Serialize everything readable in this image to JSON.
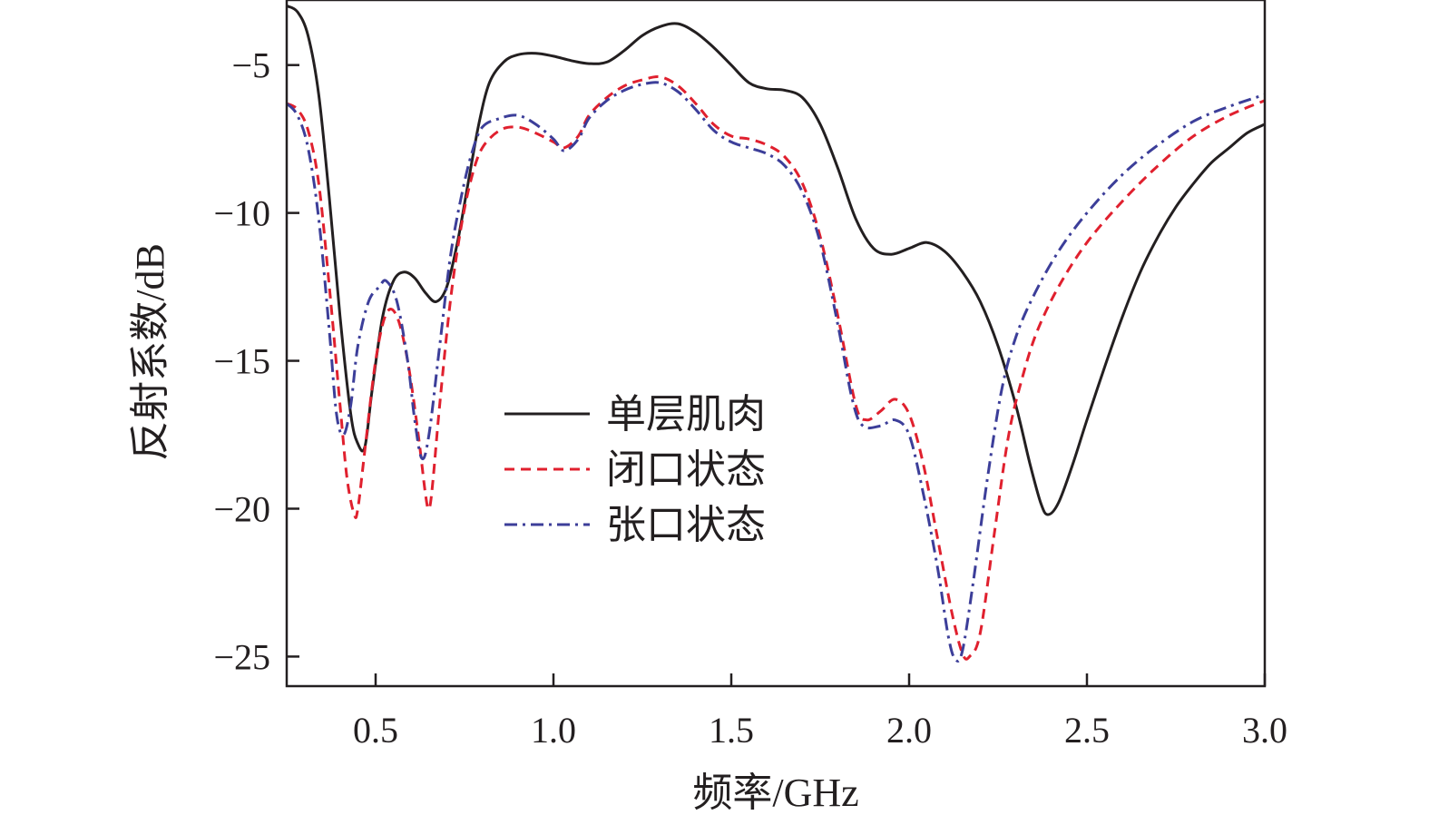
{
  "chart_data": {
    "type": "line",
    "xlabel": "频率/GHz",
    "ylabel": "反射系数/dB",
    "xlim": [
      0.25,
      3.0
    ],
    "ylim": [
      -26,
      -2.8
    ],
    "xticks": [
      "0.5",
      "1.0",
      "1.5",
      "2.0",
      "2.5",
      "3.0"
    ],
    "yticks": [
      "−5",
      "−10",
      "−15",
      "−20",
      "−25"
    ],
    "grid": false,
    "legend_position": "center-left",
    "series": [
      {
        "name": "单层肌肉",
        "color": "#231f20",
        "dash": "solid",
        "points": [
          [
            0.25,
            -3.0
          ],
          [
            0.28,
            -3.2
          ],
          [
            0.31,
            -4.0
          ],
          [
            0.34,
            -6.0
          ],
          [
            0.37,
            -9.5
          ],
          [
            0.4,
            -13.5
          ],
          [
            0.43,
            -16.8
          ],
          [
            0.45,
            -17.8
          ],
          [
            0.47,
            -17.9
          ],
          [
            0.49,
            -16.0
          ],
          [
            0.52,
            -13.5
          ],
          [
            0.55,
            -12.3
          ],
          [
            0.58,
            -12.0
          ],
          [
            0.61,
            -12.2
          ],
          [
            0.64,
            -12.7
          ],
          [
            0.67,
            -13.0
          ],
          [
            0.7,
            -12.5
          ],
          [
            0.73,
            -11.0
          ],
          [
            0.76,
            -9.0
          ],
          [
            0.79,
            -7.0
          ],
          [
            0.82,
            -5.6
          ],
          [
            0.86,
            -4.9
          ],
          [
            0.9,
            -4.65
          ],
          [
            0.95,
            -4.6
          ],
          [
            1.0,
            -4.7
          ],
          [
            1.05,
            -4.85
          ],
          [
            1.1,
            -4.95
          ],
          [
            1.15,
            -4.9
          ],
          [
            1.2,
            -4.5
          ],
          [
            1.25,
            -4.0
          ],
          [
            1.3,
            -3.7
          ],
          [
            1.35,
            -3.6
          ],
          [
            1.4,
            -3.9
          ],
          [
            1.45,
            -4.4
          ],
          [
            1.5,
            -5.0
          ],
          [
            1.55,
            -5.6
          ],
          [
            1.6,
            -5.8
          ],
          [
            1.65,
            -5.85
          ],
          [
            1.7,
            -6.1
          ],
          [
            1.75,
            -7.0
          ],
          [
            1.8,
            -8.5
          ],
          [
            1.85,
            -10.2
          ],
          [
            1.9,
            -11.2
          ],
          [
            1.95,
            -11.4
          ],
          [
            2.0,
            -11.2
          ],
          [
            2.05,
            -11.0
          ],
          [
            2.1,
            -11.3
          ],
          [
            2.15,
            -12.0
          ],
          [
            2.2,
            -13.0
          ],
          [
            2.25,
            -14.5
          ],
          [
            2.3,
            -16.5
          ],
          [
            2.34,
            -18.5
          ],
          [
            2.37,
            -19.8
          ],
          [
            2.39,
            -20.2
          ],
          [
            2.42,
            -19.8
          ],
          [
            2.46,
            -18.5
          ],
          [
            2.5,
            -17.0
          ],
          [
            2.55,
            -15.2
          ],
          [
            2.6,
            -13.5
          ],
          [
            2.65,
            -12.0
          ],
          [
            2.7,
            -10.8
          ],
          [
            2.75,
            -9.8
          ],
          [
            2.8,
            -9.0
          ],
          [
            2.85,
            -8.3
          ],
          [
            2.9,
            -7.8
          ],
          [
            2.95,
            -7.3
          ],
          [
            3.0,
            -7.0
          ]
        ]
      },
      {
        "name": "闭口状态",
        "color": "#e0202e",
        "dash": "dashed",
        "points": [
          [
            0.25,
            -6.3
          ],
          [
            0.28,
            -6.5
          ],
          [
            0.31,
            -7.2
          ],
          [
            0.34,
            -9.0
          ],
          [
            0.37,
            -12.5
          ],
          [
            0.4,
            -16.5
          ],
          [
            0.42,
            -19.0
          ],
          [
            0.44,
            -20.2
          ],
          [
            0.45,
            -20.0
          ],
          [
            0.47,
            -18.0
          ],
          [
            0.5,
            -15.0
          ],
          [
            0.53,
            -13.4
          ],
          [
            0.56,
            -13.5
          ],
          [
            0.59,
            -15.0
          ],
          [
            0.62,
            -17.5
          ],
          [
            0.64,
            -19.5
          ],
          [
            0.65,
            -20.0
          ],
          [
            0.66,
            -19.2
          ],
          [
            0.68,
            -16.5
          ],
          [
            0.71,
            -13.0
          ],
          [
            0.74,
            -10.5
          ],
          [
            0.77,
            -8.8
          ],
          [
            0.8,
            -7.8
          ],
          [
            0.85,
            -7.2
          ],
          [
            0.9,
            -7.1
          ],
          [
            0.95,
            -7.3
          ],
          [
            1.0,
            -7.6
          ],
          [
            1.03,
            -7.8
          ],
          [
            1.07,
            -7.4
          ],
          [
            1.1,
            -6.7
          ],
          [
            1.15,
            -6.1
          ],
          [
            1.2,
            -5.7
          ],
          [
            1.25,
            -5.5
          ],
          [
            1.3,
            -5.4
          ],
          [
            1.35,
            -5.7
          ],
          [
            1.4,
            -6.3
          ],
          [
            1.45,
            -7.0
          ],
          [
            1.5,
            -7.4
          ],
          [
            1.55,
            -7.5
          ],
          [
            1.6,
            -7.7
          ],
          [
            1.65,
            -8.1
          ],
          [
            1.7,
            -9.0
          ],
          [
            1.75,
            -10.8
          ],
          [
            1.8,
            -13.5
          ],
          [
            1.85,
            -16.5
          ],
          [
            1.88,
            -17.0
          ],
          [
            1.92,
            -16.7
          ],
          [
            1.96,
            -16.3
          ],
          [
            2.0,
            -16.8
          ],
          [
            2.04,
            -18.5
          ],
          [
            2.08,
            -21.0
          ],
          [
            2.12,
            -23.5
          ],
          [
            2.15,
            -24.9
          ],
          [
            2.17,
            -25.0
          ],
          [
            2.2,
            -24.2
          ],
          [
            2.24,
            -20.8
          ],
          [
            2.28,
            -17.5
          ],
          [
            2.32,
            -15.5
          ],
          [
            2.36,
            -14.0
          ],
          [
            2.42,
            -12.5
          ],
          [
            2.5,
            -11.0
          ],
          [
            2.6,
            -9.6
          ],
          [
            2.7,
            -8.4
          ],
          [
            2.8,
            -7.4
          ],
          [
            2.9,
            -6.7
          ],
          [
            3.0,
            -6.2
          ]
        ]
      },
      {
        "name": "张口状态",
        "color": "#3c3e99",
        "dash": "dashdot",
        "points": [
          [
            0.25,
            -6.3
          ],
          [
            0.28,
            -6.7
          ],
          [
            0.31,
            -7.8
          ],
          [
            0.34,
            -10.2
          ],
          [
            0.37,
            -14.0
          ],
          [
            0.39,
            -16.8
          ],
          [
            0.41,
            -17.5
          ],
          [
            0.43,
            -16.5
          ],
          [
            0.45,
            -14.5
          ],
          [
            0.48,
            -13.0
          ],
          [
            0.51,
            -12.5
          ],
          [
            0.53,
            -12.3
          ],
          [
            0.56,
            -13.0
          ],
          [
            0.59,
            -15.0
          ],
          [
            0.61,
            -17.0
          ],
          [
            0.63,
            -18.3
          ],
          [
            0.65,
            -17.5
          ],
          [
            0.68,
            -14.5
          ],
          [
            0.71,
            -11.5
          ],
          [
            0.74,
            -9.5
          ],
          [
            0.77,
            -8.0
          ],
          [
            0.8,
            -7.1
          ],
          [
            0.85,
            -6.8
          ],
          [
            0.9,
            -6.7
          ],
          [
            0.95,
            -7.0
          ],
          [
            1.0,
            -7.5
          ],
          [
            1.03,
            -7.9
          ],
          [
            1.07,
            -7.5
          ],
          [
            1.1,
            -6.8
          ],
          [
            1.15,
            -6.2
          ],
          [
            1.2,
            -5.85
          ],
          [
            1.25,
            -5.65
          ],
          [
            1.3,
            -5.6
          ],
          [
            1.35,
            -5.9
          ],
          [
            1.4,
            -6.5
          ],
          [
            1.45,
            -7.2
          ],
          [
            1.5,
            -7.6
          ],
          [
            1.55,
            -7.8
          ],
          [
            1.6,
            -8.0
          ],
          [
            1.65,
            -8.4
          ],
          [
            1.7,
            -9.3
          ],
          [
            1.75,
            -11.0
          ],
          [
            1.8,
            -13.8
          ],
          [
            1.84,
            -16.3
          ],
          [
            1.87,
            -17.2
          ],
          [
            1.92,
            -17.2
          ],
          [
            1.96,
            -17.0
          ],
          [
            2.0,
            -17.5
          ],
          [
            2.04,
            -19.5
          ],
          [
            2.08,
            -22.0
          ],
          [
            2.11,
            -24.3
          ],
          [
            2.13,
            -25.1
          ],
          [
            2.15,
            -24.8
          ],
          [
            2.18,
            -22.5
          ],
          [
            2.22,
            -19.0
          ],
          [
            2.26,
            -16.0
          ],
          [
            2.3,
            -14.2
          ],
          [
            2.35,
            -12.8
          ],
          [
            2.42,
            -11.3
          ],
          [
            2.5,
            -10.0
          ],
          [
            2.6,
            -8.7
          ],
          [
            2.7,
            -7.7
          ],
          [
            2.8,
            -6.9
          ],
          [
            2.9,
            -6.4
          ],
          [
            3.0,
            -6.0
          ]
        ]
      }
    ]
  }
}
